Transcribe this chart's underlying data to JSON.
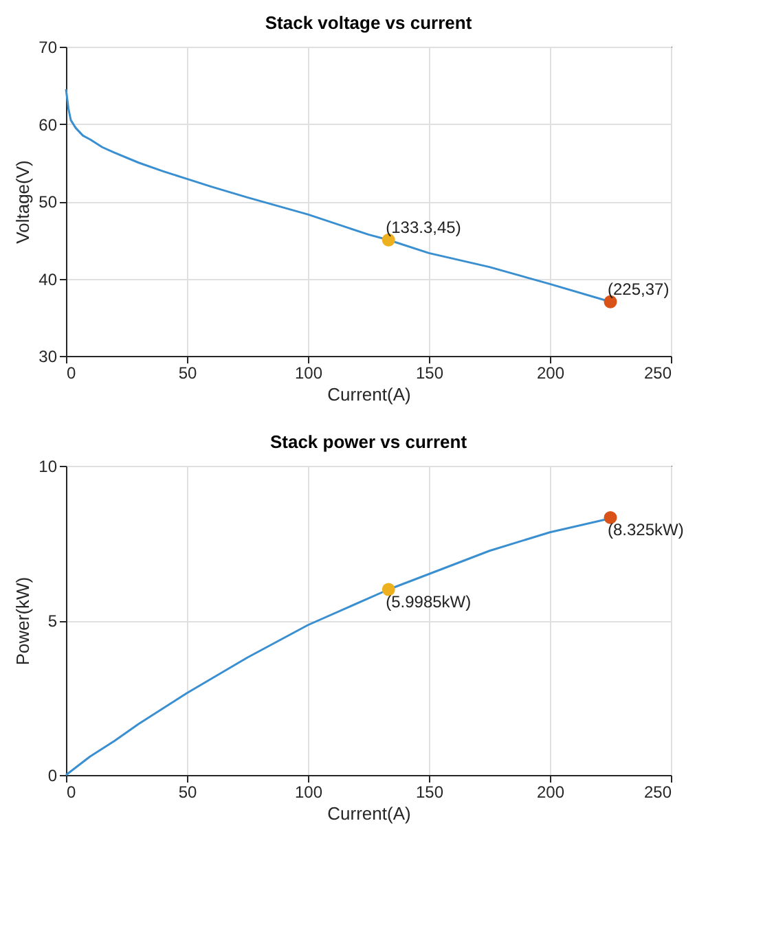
{
  "chart_data": [
    {
      "type": "line",
      "title": "Stack voltage vs current",
      "xlabel": "Current(A)",
      "ylabel": "Voltage(V)",
      "xlim": [
        0,
        250
      ],
      "xticks": [
        0,
        50,
        100,
        150,
        200,
        250
      ],
      "ylim": [
        30,
        70
      ],
      "yticks": [
        30,
        40,
        50,
        60,
        70
      ],
      "grid": true,
      "marker": "none",
      "line_style": "solid",
      "series": [
        {
          "color": "#3a8fd0",
          "x": [
            0,
            1,
            2,
            4,
            7,
            10,
            15,
            20,
            30,
            40,
            50,
            60,
            75,
            100,
            125,
            133.3,
            150,
            175,
            200,
            225
          ],
          "values": [
            64.5,
            62,
            60.5,
            59.5,
            58.5,
            58,
            57,
            56.3,
            55,
            53.9,
            52.9,
            51.9,
            50.5,
            48.3,
            45.7,
            45,
            43.3,
            41.5,
            39.3,
            37
          ]
        },
        {
          "type": "scatter",
          "color": "#edb120",
          "marker": "circle",
          "x": [
            133.3
          ],
          "values": [
            45
          ]
        },
        {
          "type": "scatter",
          "color": "#d95319",
          "marker": "circle",
          "x": [
            225
          ],
          "values": [
            37
          ]
        }
      ],
      "annotations": [
        "(133.3,45)",
        "(225,37)"
      ]
    },
    {
      "type": "line",
      "title": "Stack power vs current",
      "xlabel": "Current(A)",
      "ylabel": "Power(kW)",
      "xlim": [
        0,
        250
      ],
      "xticks": [
        0,
        50,
        100,
        150,
        200,
        250
      ],
      "ylim": [
        0,
        10
      ],
      "yticks": [
        0,
        5,
        10
      ],
      "grid": true,
      "marker": "none",
      "line_style": "solid",
      "series": [
        {
          "color": "#3a8fd0",
          "x": [
            0,
            10,
            20,
            30,
            50,
            75,
            100,
            133.3,
            150,
            175,
            200,
            225
          ],
          "values": [
            0,
            0.6,
            1.1,
            1.65,
            2.65,
            3.8,
            4.85,
            6.0,
            6.5,
            7.25,
            7.85,
            8.3
          ]
        },
        {
          "type": "scatter",
          "color": "#edb120",
          "marker": "circle",
          "x": [
            133.3
          ],
          "values": [
            5.9985
          ]
        },
        {
          "type": "scatter",
          "color": "#d95319",
          "marker": "circle",
          "x": [
            225
          ],
          "values": [
            8.325
          ]
        }
      ],
      "annotations": [
        "(5.9985kW)",
        "(8.325kW)"
      ]
    }
  ]
}
